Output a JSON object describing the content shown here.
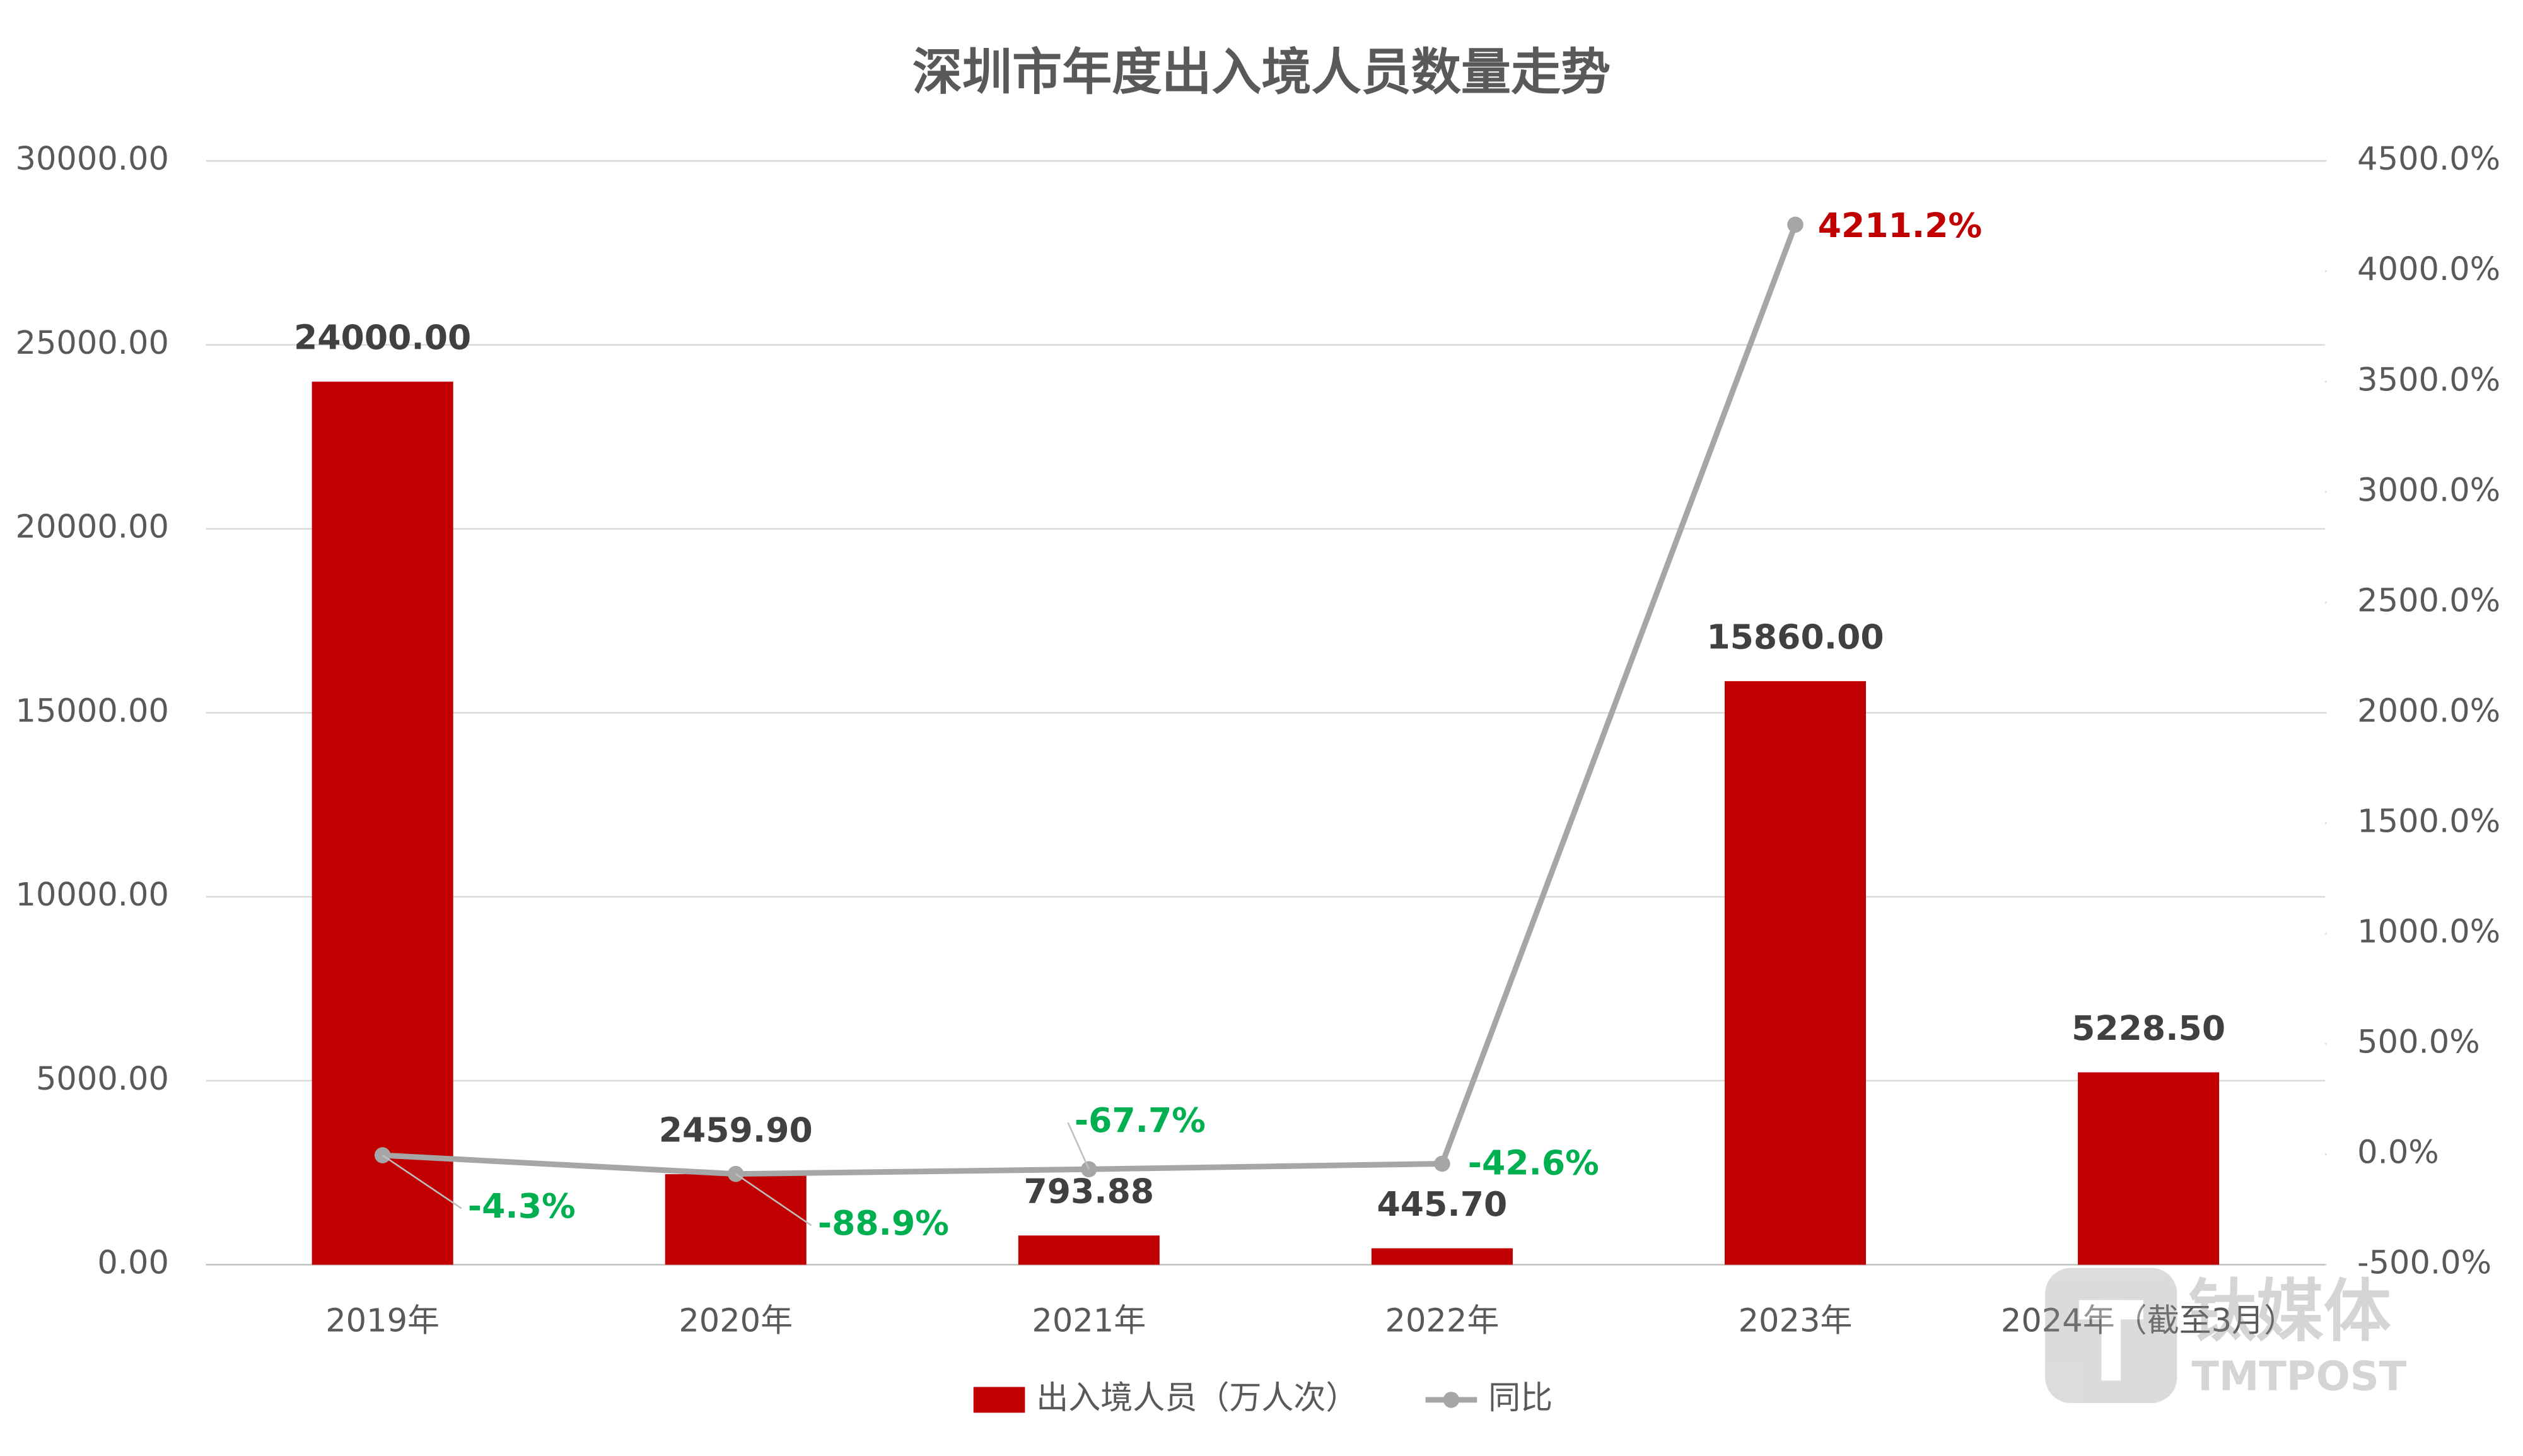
{
  "chart_data": {
    "type": "bar",
    "title": "深圳市年度出入境人员数量走势",
    "categories": [
      "2019年",
      "2020年",
      "2021年",
      "2022年",
      "2023年",
      "2024年（截至3月）"
    ],
    "series": [
      {
        "name": "出入境人员（万人次）",
        "type": "bar",
        "color": "#c00000",
        "values": [
          24000,
          2459.9,
          793.88,
          445.7,
          15860,
          5228.5
        ],
        "value_labels": [
          "24000.00",
          "2459.90",
          "793.88",
          "445.70",
          "15860.00",
          "5228.50"
        ]
      },
      {
        "name": "同比",
        "type": "line",
        "axis": "y2",
        "color": "#a6a6a6",
        "values": [
          -4.3,
          -88.9,
          -67.7,
          -42.6,
          4211.2,
          null
        ],
        "value_labels": [
          "-4.3%",
          "-88.9%",
          "-67.7%",
          "-42.6%",
          "4211.2%",
          null
        ],
        "label_colors": [
          "#00b050",
          "#00b050",
          "#00b050",
          "#00b050",
          "#c00000",
          null
        ]
      }
    ],
    "ylim": [
      0,
      30000
    ],
    "yticks": [
      {
        "value": 0,
        "label": "0.00"
      },
      {
        "value": 5000,
        "label": "5000.00"
      },
      {
        "value": 10000,
        "label": "10000.00"
      },
      {
        "value": 15000,
        "label": "15000.00"
      },
      {
        "value": 20000,
        "label": "20000.00"
      },
      {
        "value": 25000,
        "label": "25000.00"
      },
      {
        "value": 30000,
        "label": "30000.00"
      }
    ],
    "y2lim": [
      -500,
      4500
    ],
    "y2ticks": [
      {
        "value": -500,
        "label": "-500.0%"
      },
      {
        "value": 0,
        "label": "0.0%"
      },
      {
        "value": 500,
        "label": "500.0%"
      },
      {
        "value": 1000,
        "label": "1000.0%"
      },
      {
        "value": 1500,
        "label": "1500.0%"
      },
      {
        "value": 2000,
        "label": "2000.0%"
      },
      {
        "value": 2500,
        "label": "2500.0%"
      },
      {
        "value": 3000,
        "label": "3000.0%"
      },
      {
        "value": 3500,
        "label": "3500.0%"
      },
      {
        "value": 4000,
        "label": "4000.0%"
      },
      {
        "value": 4500,
        "label": "4500.0%"
      }
    ],
    "grid": true,
    "legend": "bottom",
    "watermark": {
      "brand": "钛媒体",
      "sub": "TMTPOST"
    }
  }
}
